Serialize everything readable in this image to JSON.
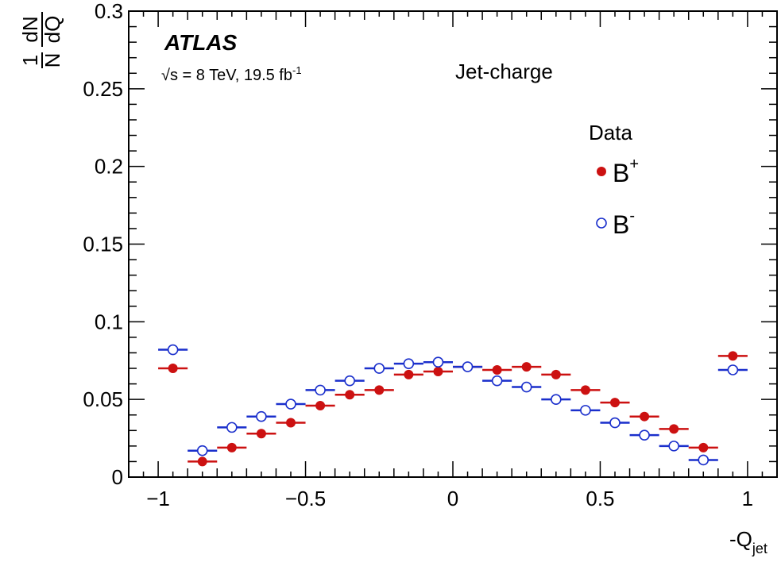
{
  "chart_data": {
    "type": "scatter",
    "xlabel": "-Q",
    "xlabel_subscript": "jet",
    "ylabel": "1/N dN/dQ",
    "ylabel_parts": {
      "num1": "1",
      "den1": "N",
      "num2": "dN",
      "den2": "dQ"
    },
    "xlim": [
      -1.1,
      1.1
    ],
    "ylim": [
      0,
      0.3
    ],
    "x_ticks": [
      -1,
      -0.5,
      0,
      0.5,
      1
    ],
    "x_tick_labels": [
      "−1",
      "−0.5",
      "0",
      "0.5",
      "1"
    ],
    "y_ticks": [
      0,
      0.05,
      0.1,
      0.15,
      0.2,
      0.25,
      0.3
    ],
    "y_tick_labels": [
      "0",
      "0.05",
      "0.1",
      "0.15",
      "0.2",
      "0.25",
      "0.3"
    ],
    "bin_width": 0.1,
    "x": [
      -0.95,
      -0.85,
      -0.75,
      -0.65,
      -0.55,
      -0.45,
      -0.35,
      -0.25,
      -0.15,
      -0.05,
      0.05,
      0.15,
      0.25,
      0.35,
      0.45,
      0.55,
      0.65,
      0.75,
      0.85,
      0.95
    ],
    "series": [
      {
        "name": "B+",
        "marker": "filled-circle",
        "color": "#cc1111",
        "values": [
          0.07,
          0.01,
          0.019,
          0.028,
          0.035,
          0.046,
          0.053,
          0.056,
          0.066,
          0.068,
          0.071,
          0.069,
          0.071,
          0.066,
          0.056,
          0.048,
          0.039,
          0.031,
          0.019,
          0.078
        ]
      },
      {
        "name": "B-",
        "marker": "open-circle",
        "color": "#1a2fcc",
        "values": [
          0.082,
          0.017,
          0.032,
          0.039,
          0.047,
          0.056,
          0.062,
          0.07,
          0.073,
          0.074,
          0.071,
          0.062,
          0.058,
          0.05,
          0.043,
          0.035,
          0.027,
          0.02,
          0.011,
          0.069
        ]
      }
    ],
    "annotations": {
      "experiment": "ATLAS",
      "energy_prefix": "√s = 8 TeV, 19.5 fb",
      "energy_sup": "-1",
      "title": "Jet-charge"
    },
    "legend": {
      "title": "Data",
      "placement": "top-right",
      "entries": [
        {
          "label": "B",
          "sup": "+"
        },
        {
          "label": "B",
          "sup": "-"
        }
      ]
    },
    "grid": false
  }
}
